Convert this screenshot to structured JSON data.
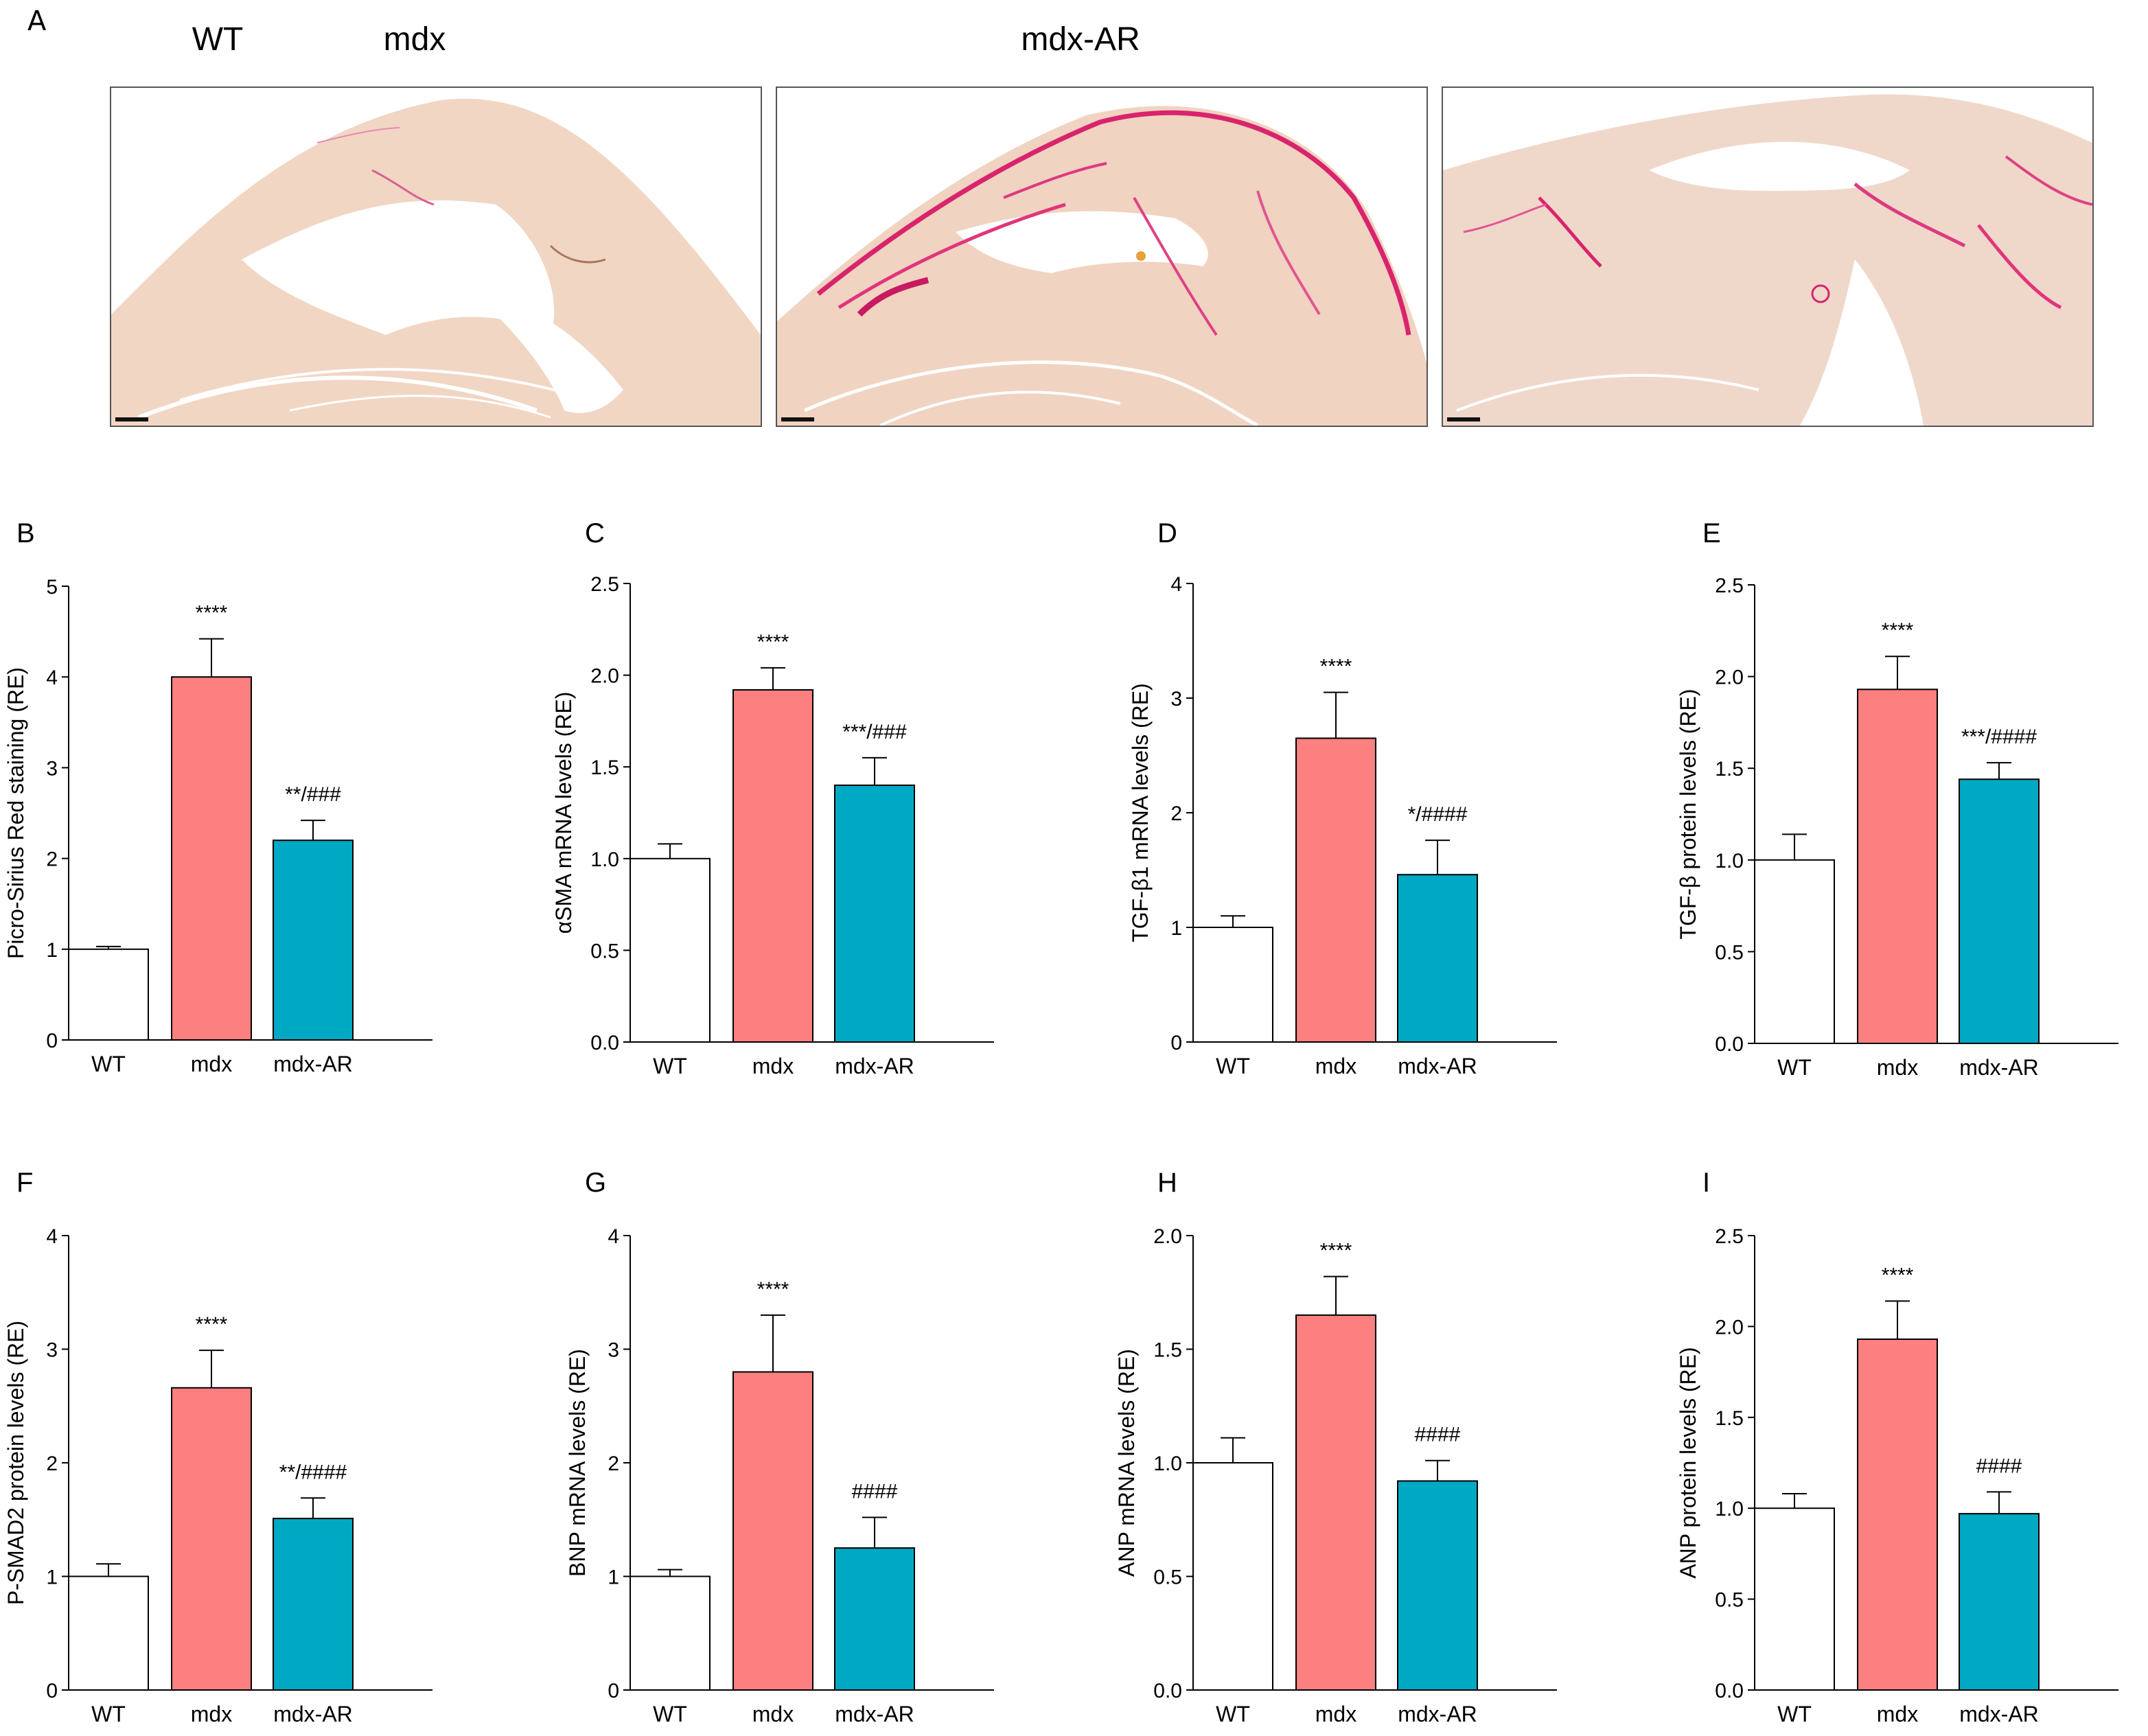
{
  "panel_a": {
    "letter": "A",
    "images": [
      {
        "title": "WT",
        "fibrosis_level": "low"
      },
      {
        "title": "mdx",
        "fibrosis_level": "high"
      },
      {
        "title": "mdx-AR",
        "fibrosis_level": "medium"
      }
    ]
  },
  "colors": {
    "WT": "#ffffff",
    "mdx": "#fc8080",
    "mdx-AR": "#00a9c3",
    "stroke": "#000000"
  },
  "chart_data": [
    {
      "letter": "B",
      "type": "bar",
      "ylabel": "Picro-Sirius Red staining (RE)",
      "ylim": [
        0,
        5
      ],
      "ticks": [
        "0",
        "1",
        "2",
        "3",
        "4",
        "5"
      ],
      "categories": [
        "WT",
        "mdx",
        "mdx-AR"
      ],
      "values": [
        1.0,
        4.0,
        2.2
      ],
      "errors": [
        0.03,
        0.42,
        0.22
      ],
      "annotations": [
        "",
        "****",
        "**/###"
      ]
    },
    {
      "letter": "C",
      "type": "bar",
      "ylabel": "αSMA mRNA levels (RE)",
      "ylim": [
        0,
        2.5
      ],
      "ticks": [
        "0.0",
        "0.5",
        "1.0",
        "1.5",
        "2.0",
        "2.5"
      ],
      "categories": [
        "WT",
        "mdx",
        "mdx-AR"
      ],
      "values": [
        1.0,
        1.92,
        1.4
      ],
      "errors": [
        0.08,
        0.12,
        0.15
      ],
      "annotations": [
        "",
        "****",
        "***/###"
      ]
    },
    {
      "letter": "D",
      "type": "bar",
      "ylabel": "TGF-β1 mRNA levels (RE)",
      "ylim": [
        0,
        4
      ],
      "ticks": [
        "0",
        "1",
        "2",
        "3",
        "4"
      ],
      "categories": [
        "WT",
        "mdx",
        "mdx-AR"
      ],
      "values": [
        1.0,
        2.65,
        1.46
      ],
      "errors": [
        0.1,
        0.4,
        0.3
      ],
      "annotations": [
        "",
        "****",
        "*/####"
      ]
    },
    {
      "letter": "E",
      "type": "bar",
      "ylabel": "TGF-β protein levels (RE)",
      "ylim": [
        0,
        2.5
      ],
      "ticks": [
        "0.0",
        "0.5",
        "1.0",
        "1.5",
        "2.0",
        "2.5"
      ],
      "categories": [
        "WT",
        "mdx",
        "mdx-AR"
      ],
      "values": [
        1.0,
        1.93,
        1.44
      ],
      "errors": [
        0.14,
        0.18,
        0.09
      ],
      "annotations": [
        "",
        "****",
        "***/####"
      ]
    },
    {
      "letter": "F",
      "type": "bar",
      "ylabel": "P-SMAD2 protein levels (RE)",
      "ylim": [
        0,
        4
      ],
      "ticks": [
        "0",
        "1",
        "2",
        "3",
        "4"
      ],
      "categories": [
        "WT",
        "mdx",
        "mdx-AR"
      ],
      "values": [
        1.0,
        2.66,
        1.51
      ],
      "errors": [
        0.11,
        0.33,
        0.18
      ],
      "annotations": [
        "",
        "****",
        "**/####"
      ]
    },
    {
      "letter": "G",
      "type": "bar",
      "ylabel": "BNP mRNA levels (RE)",
      "ylim": [
        0,
        4
      ],
      "ticks": [
        "0",
        "1",
        "2",
        "3",
        "4"
      ],
      "categories": [
        "WT",
        "mdx",
        "mdx-AR"
      ],
      "values": [
        1.0,
        2.8,
        1.25
      ],
      "errors": [
        0.06,
        0.5,
        0.27
      ],
      "annotations": [
        "",
        "****",
        "####"
      ]
    },
    {
      "letter": "H",
      "type": "bar",
      "ylabel": "ANP mRNA levels (RE)",
      "ylim": [
        0,
        2.0
      ],
      "ticks": [
        "0.0",
        "0.5",
        "1.0",
        "1.5",
        "2.0"
      ],
      "categories": [
        "WT",
        "mdx",
        "mdx-AR"
      ],
      "values": [
        1.0,
        1.65,
        0.92
      ],
      "errors": [
        0.11,
        0.17,
        0.09
      ],
      "annotations": [
        "",
        "****",
        "####"
      ]
    },
    {
      "letter": "I",
      "type": "bar",
      "ylabel": "ANP protein levels (RE)",
      "ylim": [
        0,
        2.5
      ],
      "ticks": [
        "0.0",
        "0.5",
        "1.0",
        "1.5",
        "2.0",
        "2.5"
      ],
      "categories": [
        "WT",
        "mdx",
        "mdx-AR"
      ],
      "values": [
        1.0,
        1.93,
        0.97
      ],
      "errors": [
        0.08,
        0.21,
        0.12
      ],
      "annotations": [
        "",
        "****",
        "####"
      ]
    }
  ]
}
